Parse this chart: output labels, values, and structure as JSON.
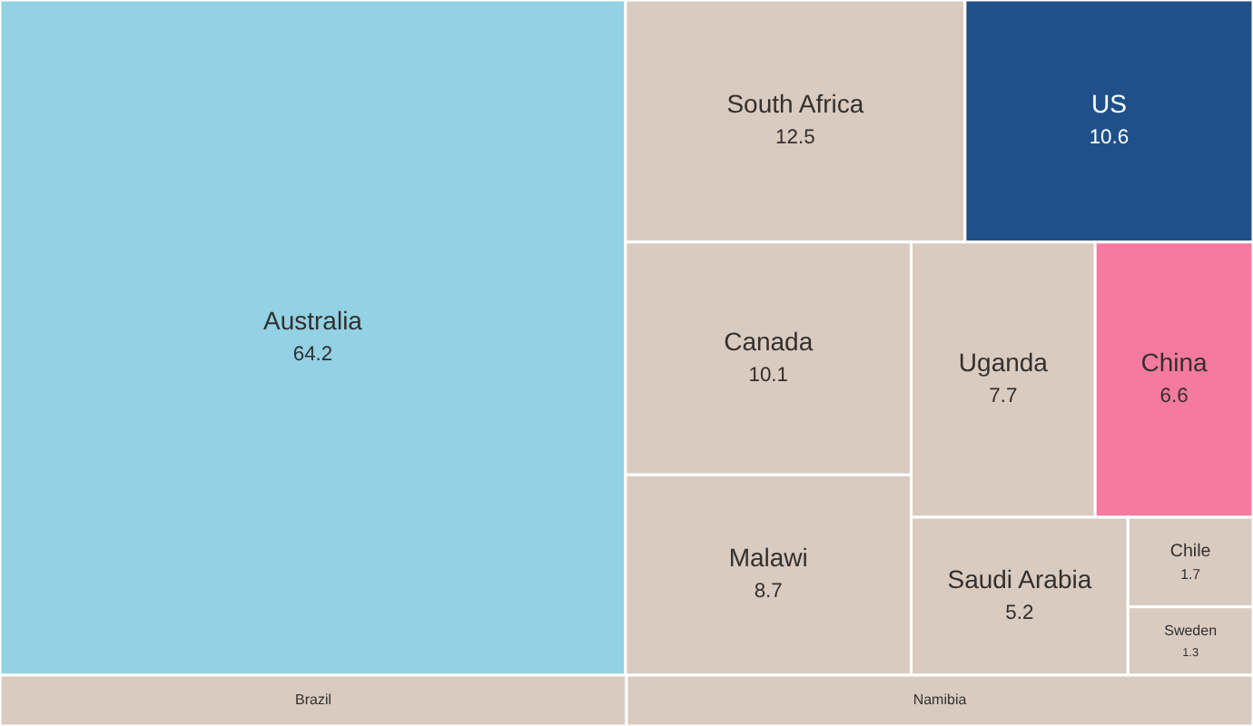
{
  "chart_data": {
    "type": "other",
    "categories": [
      "Australia",
      "Brazil",
      "South Africa",
      "US",
      "Canada",
      "Malawi",
      "Uganda",
      "China",
      "Namibia",
      "Saudi Arabia",
      "Chile",
      "Sweden"
    ],
    "values": [
      64.2,
      null,
      12.5,
      10.6,
      10.1,
      8.7,
      7.7,
      6.6,
      null,
      5.2,
      1.7,
      1.3
    ],
    "colors": [
      "#93d1e4",
      "#d9cbc0",
      "#d9cbc0",
      "#1f5089",
      "#d9cbc0",
      "#d9cbc0",
      "#d9cbc0",
      "#f47aa0",
      "#d9cbc0",
      "#d9cbc0",
      "#d9cbc0",
      "#d9cbc0"
    ],
    "data_labels": true
  }
}
